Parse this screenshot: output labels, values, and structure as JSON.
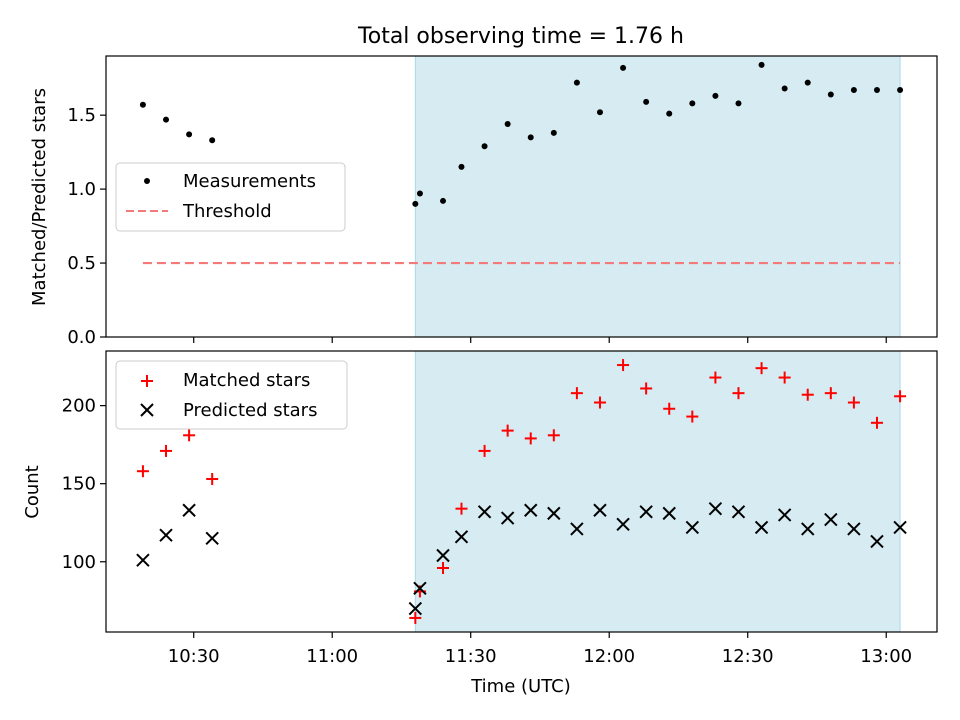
{
  "chart_data": {
    "title": "Total observing time = 1.76 h",
    "xlabel": "Time (UTC)",
    "x_ticks": [
      "10:30",
      "11:00",
      "11:30",
      "12:00",
      "12:30",
      "13:00"
    ],
    "x_range": [
      "10:11",
      "13:11"
    ],
    "shaded_span": [
      "11:18",
      "13:03"
    ],
    "times": [
      "10:19",
      "10:24",
      "10:29",
      "10:34",
      "11:18",
      "11:19",
      "11:24",
      "11:28",
      "11:33",
      "11:38",
      "11:43",
      "11:48",
      "11:53",
      "11:58",
      "12:03",
      "12:08",
      "12:13",
      "12:18",
      "12:23",
      "12:28",
      "12:33",
      "12:38",
      "12:43",
      "12:48",
      "12:53",
      "12:58",
      "13:03"
    ],
    "panels": [
      {
        "type": "scatter",
        "ylabel": "Matched/Predicted stars",
        "ylim": [
          0,
          1.9
        ],
        "y_ticks": [
          0.0,
          0.5,
          1.0,
          1.5
        ],
        "y_tick_labels": [
          "0.0",
          "0.5",
          "1.0",
          "1.5"
        ],
        "legend_position": "center-left",
        "series": [
          {
            "name": "Measurements",
            "marker": "dot",
            "color": "#000000",
            "values": [
              1.57,
              1.47,
              1.37,
              1.33,
              0.9,
              0.97,
              0.92,
              1.15,
              1.29,
              1.44,
              1.35,
              1.38,
              1.72,
              1.52,
              1.82,
              1.59,
              1.51,
              1.58,
              1.63,
              1.58,
              1.84,
              1.68,
              1.72,
              1.64,
              1.67,
              1.67,
              1.67
            ]
          }
        ],
        "threshold": {
          "name": "Threshold",
          "value": 0.5,
          "x_from": "10:19",
          "x_to": "13:03",
          "color": "#f47a7a",
          "style": "dashed"
        }
      },
      {
        "type": "scatter",
        "ylabel": "Count",
        "ylim": [
          55,
          235
        ],
        "y_ticks": [
          100,
          150,
          200
        ],
        "y_tick_labels": [
          "100",
          "150",
          "200"
        ],
        "legend_position": "top-left",
        "series": [
          {
            "name": "Matched stars",
            "marker": "plus",
            "color": "#ff0000",
            "values": [
              158,
              171,
              181,
              153,
              64,
              81,
              96,
              134,
              171,
              184,
              179,
              181,
              208,
              202,
              226,
              211,
              198,
              193,
              218,
              208,
              224,
              218,
              207,
              208,
              202,
              189,
              206
            ]
          },
          {
            "name": "Predicted stars",
            "marker": "x",
            "color": "#000000",
            "values": [
              101,
              117,
              133,
              115,
              70,
              83,
              104,
              116,
              132,
              128,
              133,
              131,
              121,
              133,
              124,
              132,
              131,
              122,
              134,
              132,
              122,
              130,
              121,
              127,
              121,
              113,
              122
            ]
          }
        ]
      }
    ],
    "colors": {
      "span": "#add8e6",
      "frame": "#000000"
    }
  }
}
